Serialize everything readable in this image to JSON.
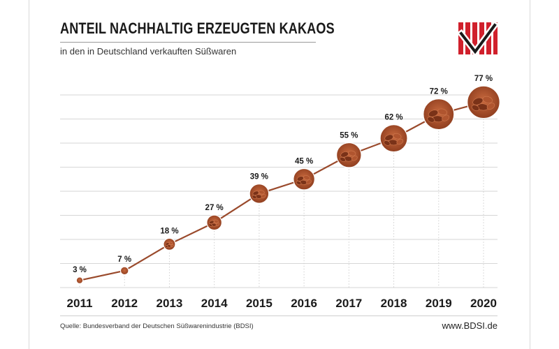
{
  "header": {
    "title": "ANTEIL NACHHALTIG ERZEUGTEN KAKAOS",
    "subtitle": "in den in Deutschland verkauften Süßwaren"
  },
  "footer": {
    "source": "Quelle: Bundesverband der Deutschen Süßwarenindustrie (BDSI)",
    "url": "www.BDSI.de"
  },
  "colors": {
    "line": "#9a4a2c",
    "bean_dark": "#7a3218",
    "bean_mid": "#b0552f",
    "bean_light": "#d07a4f",
    "grid": "#d6d6d6",
    "logo_red": "#d0202c",
    "logo_black": "#1a1a1a"
  },
  "chart_data": {
    "type": "line",
    "title": "ANTEIL NACHHALTIG ERZEUGTEN KAKAOS",
    "subtitle": "in den in Deutschland verkauften Süßwaren",
    "xlabel": "",
    "ylabel": "",
    "categories": [
      "2011",
      "2012",
      "2013",
      "2014",
      "2015",
      "2016",
      "2017",
      "2018",
      "2019",
      "2020"
    ],
    "values": [
      3,
      7,
      18,
      27,
      39,
      45,
      55,
      62,
      72,
      77
    ],
    "labels": [
      "3 %",
      "7 %",
      "18 %",
      "27 %",
      "39 %",
      "45 %",
      "55 %",
      "62 %",
      "72 %",
      "77 %"
    ],
    "ylim": [
      0,
      80
    ],
    "grid": true,
    "legend": "none"
  }
}
